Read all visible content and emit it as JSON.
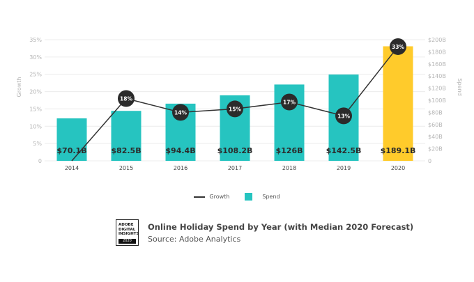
{
  "chart_data": {
    "type": "bar+line",
    "title": "Online Holiday Spend by Year (with Median 2020 Forecast)",
    "subtitle": "Source: Adobe Analytics",
    "categories": [
      "2014",
      "2015",
      "2016",
      "2017",
      "2018",
      "2019",
      "2020"
    ],
    "series": [
      {
        "name": "Spend",
        "type": "bar",
        "axis": "right",
        "values": [
          70.1,
          82.5,
          94.4,
          108.2,
          126,
          142.5,
          189.1
        ],
        "labels": [
          "$70.1B",
          "$82.5B",
          "$94.4B",
          "$108.2B",
          "$126B",
          "$142.5B",
          "$189.1B"
        ],
        "colors": [
          "#26c4c0",
          "#26c4c0",
          "#26c4c0",
          "#26c4c0",
          "#26c4c0",
          "#26c4c0",
          "#ffcb2b"
        ]
      },
      {
        "name": "Growth",
        "type": "line",
        "axis": "left",
        "values": [
          0,
          18,
          14,
          15,
          17,
          13,
          33
        ],
        "labels": [
          "",
          "18%",
          "14%",
          "15%",
          "17%",
          "13%",
          "33%"
        ],
        "color": "#333333"
      }
    ],
    "ylabel_left": "Growth",
    "ylabel_right": "Spend",
    "ylim_left": [
      0,
      35
    ],
    "ylim_right": [
      0,
      200
    ],
    "yticks_left": [
      "0",
      "5%",
      "10%",
      "15%",
      "20%",
      "25%",
      "30%",
      "35%"
    ],
    "yticks_right": [
      "0",
      "$20B",
      "$40B",
      "$60B",
      "$80B",
      "$100B",
      "$120B",
      "$140B",
      "$160B",
      "$180B",
      "$200B"
    ],
    "grid": true,
    "legend": "bottom-center"
  },
  "legend": {
    "growth": "Growth",
    "spend": "Spend"
  },
  "logo": {
    "text": "ADOBE DIGITAL INSIGHTS",
    "line1": "ADOBE",
    "line2": "DIGITAL",
    "line3": "INSIGHTS",
    "year": "2020"
  }
}
